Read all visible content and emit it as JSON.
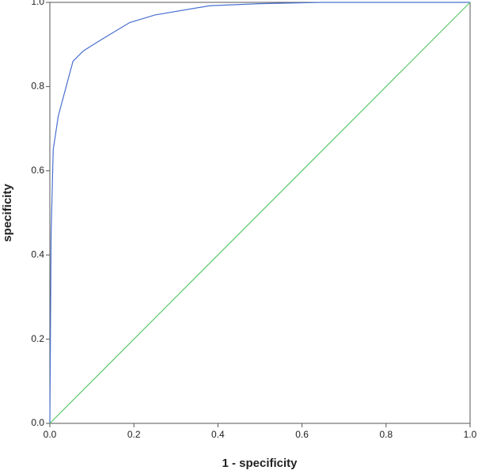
{
  "chart_data": {
    "type": "line",
    "xlabel": "1 - specificity",
    "ylabel": "specificity",
    "xlim": [
      0,
      1
    ],
    "ylim": [
      0,
      1
    ],
    "xticks": [
      {
        "value": 0,
        "label": "0.0"
      },
      {
        "value": 0.2,
        "label": "0.2"
      },
      {
        "value": 0.4,
        "label": "0.4"
      },
      {
        "value": 0.6,
        "label": "0.6"
      },
      {
        "value": 0.8,
        "label": "0.8"
      },
      {
        "value": 1,
        "label": "1.0"
      }
    ],
    "yticks": [
      {
        "value": 0,
        "label": "0.0"
      },
      {
        "value": 0.2,
        "label": "0.2"
      },
      {
        "value": 0.4,
        "label": "0.4"
      },
      {
        "value": 0.6,
        "label": "0.6"
      },
      {
        "value": 0.8,
        "label": "0.8"
      },
      {
        "value": 1,
        "label": "1.0"
      }
    ],
    "grid": false,
    "series": [
      {
        "color": "#4a6fd0",
        "x": [
          0,
          0.003,
          0.008,
          0.02,
          0.055,
          0.08,
          0.12,
          0.19,
          0.25,
          0.38,
          0.5,
          0.65,
          1
        ],
        "values": [
          0,
          0.45,
          0.65,
          0.73,
          0.86,
          0.885,
          0.91,
          0.952,
          0.97,
          0.992,
          0.997,
          1,
          1
        ]
      },
      {
        "color": "#5cc96a",
        "x": [
          0,
          1
        ],
        "values": [
          0,
          1
        ]
      }
    ]
  }
}
